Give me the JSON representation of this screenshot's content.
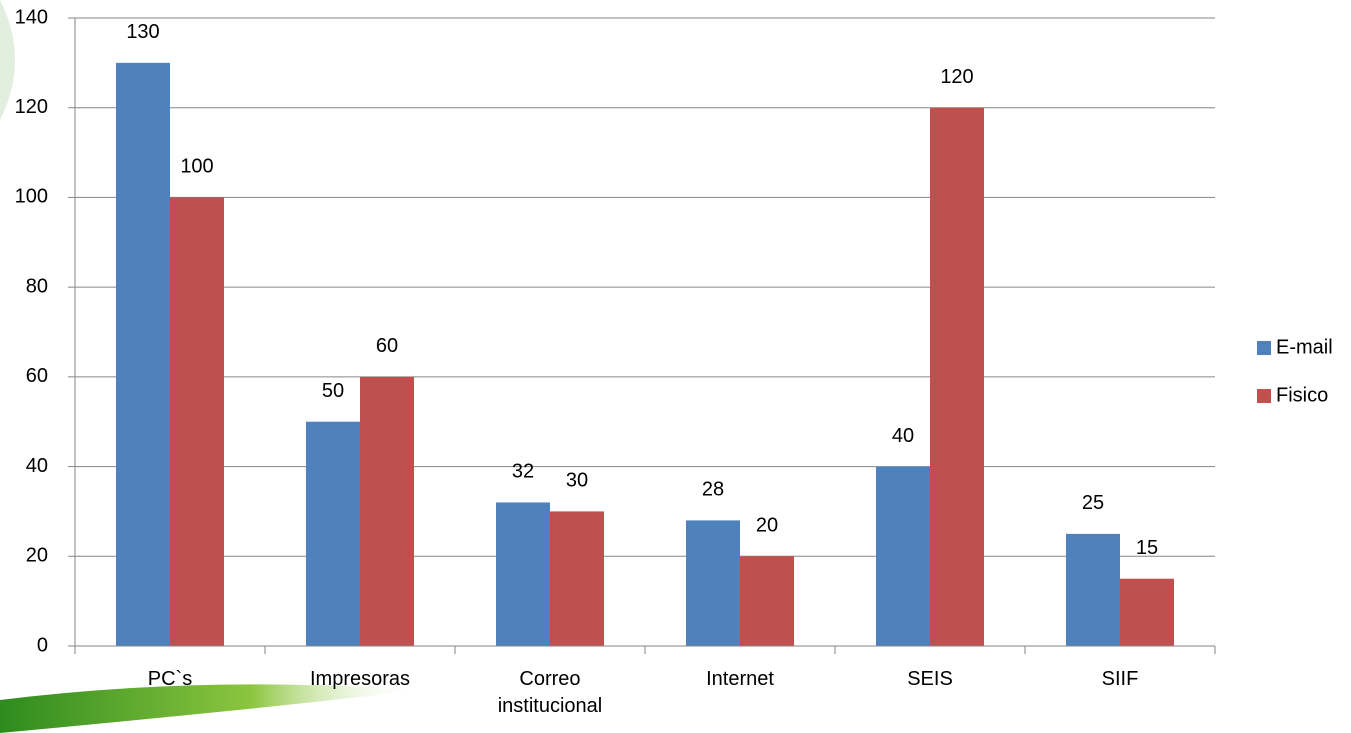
{
  "chart_data": {
    "type": "bar",
    "categories": [
      "PC`s",
      "Impresoras",
      "Correo institucional",
      "Internet",
      "SEIS",
      "SIIF"
    ],
    "series": [
      {
        "name": "E-mail",
        "color": "#4f81bd",
        "values": [
          130,
          50,
          32,
          28,
          40,
          25
        ]
      },
      {
        "name": "Fisico",
        "color": "#c0504d",
        "values": [
          100,
          60,
          30,
          20,
          120,
          15
        ]
      }
    ],
    "ylim": [
      0,
      140
    ],
    "yticks": [
      0,
      20,
      40,
      60,
      80,
      100,
      120,
      140
    ],
    "grid": true,
    "legend": "right"
  }
}
